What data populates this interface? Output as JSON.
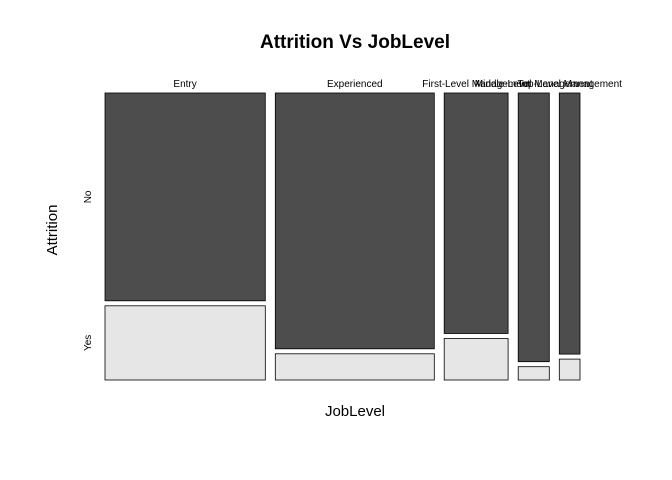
{
  "chart_data": {
    "type": "mosaic",
    "title": "Attrition Vs JobLevel",
    "xlabel": "JobLevel",
    "ylabel": "Attrition",
    "x_categories": [
      "Entry",
      "Experienced",
      "First-Level Management",
      "Middle-Level Management",
      "Top-Level Management"
    ],
    "y_categories": [
      "No",
      "Yes"
    ],
    "x_proportions": [
      0.371,
      0.368,
      0.148,
      0.072,
      0.048
    ],
    "y_proportions_by_x": [
      [
        0.737,
        0.263
      ],
      [
        0.907,
        0.093
      ],
      [
        0.853,
        0.147
      ],
      [
        0.953,
        0.047
      ],
      [
        0.926,
        0.074
      ]
    ],
    "colors": {
      "No": "#4d4d4d",
      "Yes": "#e6e6e6"
    }
  }
}
